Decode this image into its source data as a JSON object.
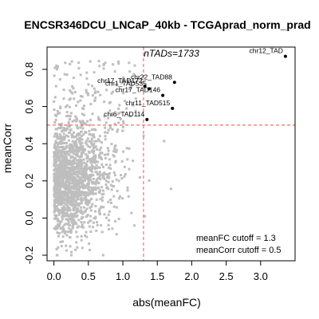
{
  "chart_data": {
    "type": "scatter",
    "title": "ENCSR346DCU_LNCaP_40kb - TCGAprad_norm_prad",
    "xlabel": "abs(meanFC)",
    "ylabel": "meanCorr",
    "xlim": [
      -0.1,
      3.5
    ],
    "ylim": [
      -0.23,
      0.92
    ],
    "x_ticks": [
      0.0,
      0.5,
      1.0,
      1.5,
      2.0,
      2.5,
      3.0
    ],
    "x_tick_labels": [
      "0.0",
      "0.5",
      "1.0",
      "1.5",
      "2.0",
      "2.5",
      "3.0"
    ],
    "y_ticks": [
      -0.2,
      0.0,
      0.2,
      0.4,
      0.6,
      0.8
    ],
    "y_tick_labels": [
      "-0.2",
      "0.0",
      "0.2",
      "0.4",
      "0.6",
      "0.8"
    ],
    "grid": false,
    "n_annotation": "nTADs=1733",
    "cutoffs": {
      "meanFC": 1.3,
      "meanCorr": 0.5,
      "line_color": "#FF6A6A",
      "labels": [
        "meanFC cutoff = 1.3",
        "meanCorr cutoff = 0.5"
      ]
    },
    "background_points": {
      "color": "#BEBEBE",
      "approx_count": 1723,
      "x_range": [
        0.0,
        2.2
      ],
      "y_range": [
        -0.2,
        0.88
      ]
    },
    "highlighted_points": [
      {
        "name": "chr12_TAD",
        "x": 3.36,
        "y": 0.87
      },
      {
        "name": "chr22_TAD88",
        "x": 1.75,
        "y": 0.73
      },
      {
        "name": "chr17_TAD172",
        "x": 1.32,
        "y": 0.71
      },
      {
        "name": "chr1_TAD535",
        "x": 1.38,
        "y": 0.695
      },
      {
        "name": "chr17_TAD146",
        "x": 1.58,
        "y": 0.66
      },
      {
        "name": "chr11_TAD515",
        "x": 1.72,
        "y": 0.59
      },
      {
        "name": "chr6_TAD114",
        "x": 1.35,
        "y": 0.53
      }
    ],
    "highlight_color": "#000000"
  }
}
